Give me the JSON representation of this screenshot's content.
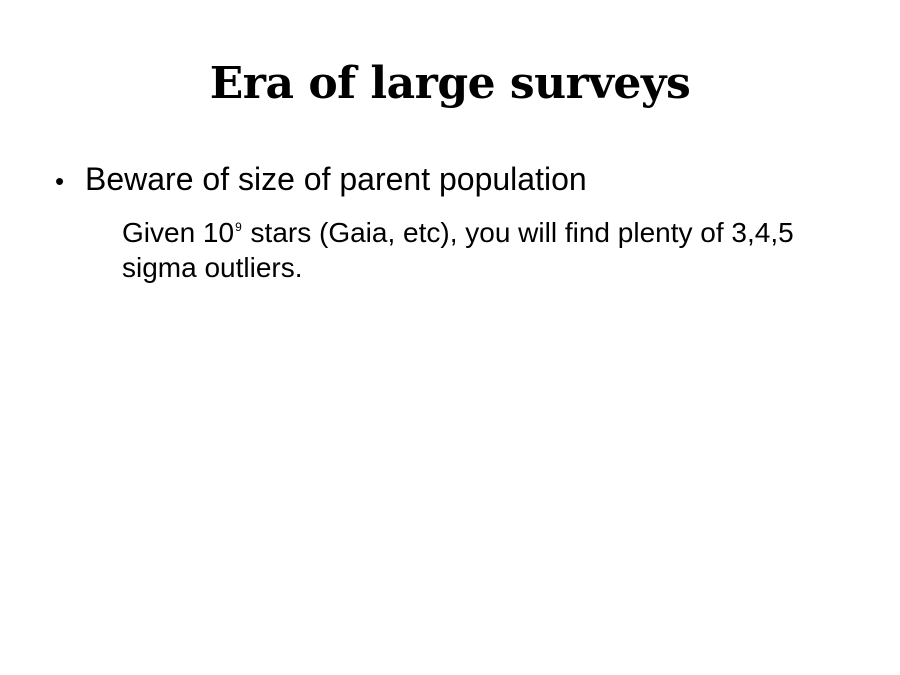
{
  "slide": {
    "title": "Era of large surveys",
    "bullet": {
      "symbol": "•",
      "text": "Beware of size of parent population"
    },
    "sub": {
      "part1": "Given 10",
      "exponent": "9",
      "part2": " stars (Gaia, etc), you will find plenty of 3,4,5 sigma outliers."
    }
  }
}
